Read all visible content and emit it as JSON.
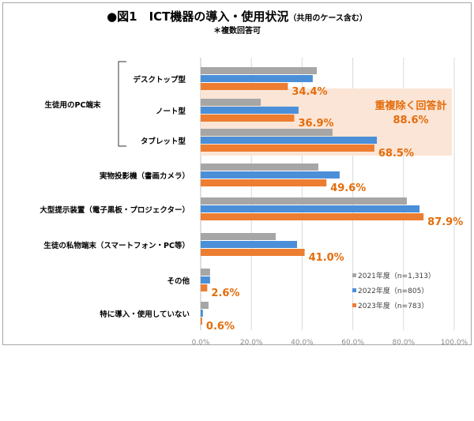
{
  "chart_data": {
    "type": "bar",
    "orientation": "horizontal",
    "title": "●図1　ICT機器の導入・使用状況",
    "title_note": "（共用のケース含む）",
    "subtitle": "＊複数回答可",
    "group_label": "生徒用のPC端末",
    "categories": [
      "デスクトップ型",
      "ノート型",
      "タブレット型",
      "実物投影機（書画カメラ）",
      "大型提示装置（電子黒板・プロジェクター）",
      "生徒の私物端末（スマートフォン・PC等）",
      "その他",
      "特に導入・使用していない"
    ],
    "series": [
      {
        "name": "2021年度（n=1,313）",
        "color": "#a6a6a6",
        "values": [
          45.8,
          23.7,
          52.0,
          46.4,
          81.3,
          29.6,
          3.7,
          3.1
        ]
      },
      {
        "name": "2022年度（n=805）",
        "color": "#4a8fd8",
        "values": [
          44.2,
          38.6,
          69.5,
          54.8,
          86.3,
          38.0,
          3.7,
          0.9
        ]
      },
      {
        "name": "2023年度（n=783）",
        "color": "#ed7d31",
        "values": [
          34.4,
          36.9,
          68.5,
          49.6,
          87.9,
          41.0,
          2.6,
          0.6
        ]
      }
    ],
    "data_labels": [
      "34.4%",
      "36.9%",
      "68.5%",
      "49.6%",
      "87.9%",
      "41.0%",
      "2.6%",
      "0.6%"
    ],
    "annotation": {
      "line1": "重複除く回答計",
      "line2": "88.6%",
      "highlight_color": "#fbe5d6"
    },
    "xlim": [
      0,
      100
    ],
    "xticks": [
      "0.0%",
      "20.0%",
      "40.0%",
      "60.0%",
      "80.0%",
      "100.0%"
    ],
    "grid": true,
    "legend_position": "bottom-right",
    "label_color": "#e46c0a"
  }
}
